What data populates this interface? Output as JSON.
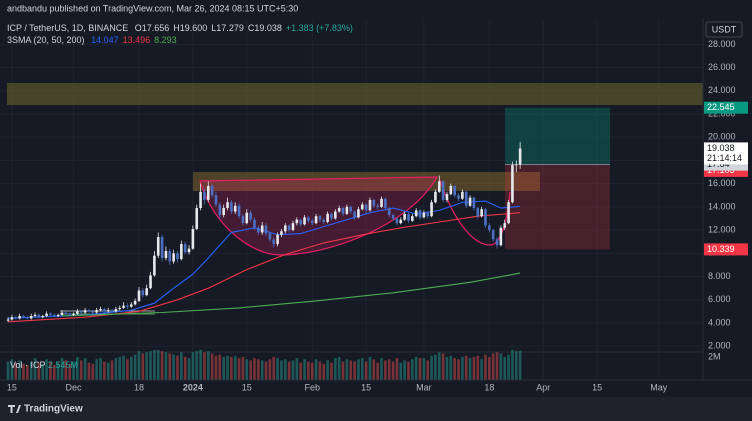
{
  "header": {
    "publisher": "andbandu published on TradingView.com, Mar 26, 2024 08:15 UTC+5:30"
  },
  "footer": {
    "brand": "TradingView"
  },
  "chart_data": {
    "type": "candlestick",
    "symbol": "ICP / TetherUS, 1D, BINANCE",
    "ohlc_labels": [
      "O17.656",
      "H19.600",
      "L17.279",
      "C19.038",
      "+1.383 (+7.83%)"
    ],
    "currency": "USDT",
    "up_color": "#e6e8ee",
    "down_color": "#4c6fc4",
    "xlim": [
      -2.1,
      180.5
    ],
    "xticks": [
      {
        "value": 1,
        "label": "15"
      },
      {
        "value": 17,
        "label": "Dec"
      },
      {
        "value": 34,
        "label": "18"
      },
      {
        "value": 48,
        "label": "2024"
      },
      {
        "value": 62,
        "label": "15"
      },
      {
        "value": 79,
        "label": "Feb"
      },
      {
        "value": 93,
        "label": "15"
      },
      {
        "value": 108,
        "label": "Mar"
      },
      {
        "value": 125,
        "label": "18"
      },
      {
        "value": 139,
        "label": "Apr"
      },
      {
        "value": 153,
        "label": "15"
      },
      {
        "value": 169,
        "label": "May"
      }
    ],
    "ylim": [
      1.5,
      30.1
    ],
    "yticks": [
      {
        "value": 2,
        "label": "2.000"
      },
      {
        "value": 4,
        "label": "4.000"
      },
      {
        "value": 6,
        "label": "6.000"
      },
      {
        "value": 8,
        "label": "8.000"
      },
      {
        "value": 10,
        "label": "10.000"
      },
      {
        "value": 12,
        "label": "12.000"
      },
      {
        "value": 14,
        "label": "14.000"
      },
      {
        "value": 16,
        "label": "16.000"
      },
      {
        "value": 18,
        "label": "18.000"
      },
      {
        "value": 20,
        "label": "20.000"
      },
      {
        "value": 22,
        "label": "22.000"
      },
      {
        "value": 24,
        "label": "24.000"
      },
      {
        "value": 26,
        "label": "26.000"
      },
      {
        "value": 28,
        "label": "28.000"
      }
    ],
    "grid": true,
    "candles": [
      [
        4.2,
        4.5,
        4.1,
        4.3
      ],
      [
        4.3,
        4.7,
        4.2,
        4.5
      ],
      [
        4.5,
        4.6,
        4.3,
        4.4
      ],
      [
        4.4,
        4.8,
        4.3,
        4.6
      ],
      [
        4.6,
        4.7,
        4.4,
        4.5
      ],
      [
        4.5,
        4.6,
        4.3,
        4.4
      ],
      [
        4.4,
        4.8,
        4.3,
        4.6
      ],
      [
        4.6,
        4.9,
        4.5,
        4.7
      ],
      [
        4.7,
        4.8,
        4.4,
        4.5
      ],
      [
        4.5,
        4.7,
        4.4,
        4.6
      ],
      [
        4.6,
        5.0,
        4.5,
        4.8
      ],
      [
        4.8,
        4.9,
        4.6,
        4.7
      ],
      [
        4.7,
        4.8,
        4.5,
        4.6
      ],
      [
        4.6,
        4.8,
        4.5,
        4.7
      ],
      [
        4.7,
        5.1,
        4.6,
        4.9
      ],
      [
        4.9,
        5.0,
        4.7,
        4.8
      ],
      [
        4.8,
        4.9,
        4.6,
        4.7
      ],
      [
        4.7,
        4.9,
        4.6,
        4.8
      ],
      [
        4.8,
        5.2,
        4.7,
        5.0
      ],
      [
        5.0,
        5.1,
        4.8,
        4.9
      ],
      [
        4.9,
        5.3,
        4.8,
        5.1
      ],
      [
        5.1,
        5.2,
        4.9,
        5.0
      ],
      [
        5.0,
        5.1,
        4.8,
        4.9
      ],
      [
        4.9,
        5.3,
        4.8,
        5.1
      ],
      [
        5.1,
        5.4,
        5.0,
        5.2
      ],
      [
        5.2,
        5.3,
        4.9,
        5.0
      ],
      [
        5.0,
        5.3,
        4.9,
        5.1
      ],
      [
        5.1,
        5.2,
        4.9,
        5.0
      ],
      [
        5.0,
        5.4,
        4.9,
        5.2
      ],
      [
        5.2,
        5.5,
        5.1,
        5.3
      ],
      [
        5.3,
        5.8,
        5.2,
        5.5
      ],
      [
        5.5,
        5.7,
        5.2,
        5.4
      ],
      [
        5.4,
        5.8,
        5.3,
        5.6
      ],
      [
        5.6,
        6.1,
        5.5,
        5.9
      ],
      [
        5.9,
        7.1,
        5.8,
        6.8
      ],
      [
        6.8,
        7.0,
        6.2,
        6.4
      ],
      [
        6.4,
        7.3,
        6.3,
        7.0
      ],
      [
        7.0,
        8.4,
        6.9,
        8.1
      ],
      [
        8.1,
        10.2,
        8.0,
        9.8
      ],
      [
        9.8,
        11.8,
        9.6,
        11.4
      ],
      [
        11.4,
        11.6,
        9.3,
        9.6
      ],
      [
        9.6,
        10.6,
        9.4,
        10.2
      ],
      [
        10.2,
        10.4,
        9.0,
        9.3
      ],
      [
        9.3,
        10.3,
        9.1,
        10.0
      ],
      [
        10.0,
        10.2,
        9.2,
        9.5
      ],
      [
        9.5,
        11.1,
        9.4,
        10.8
      ],
      [
        10.8,
        11.0,
        9.9,
        10.1
      ],
      [
        10.1,
        10.7,
        9.9,
        10.4
      ],
      [
        10.4,
        12.4,
        10.3,
        12.1
      ],
      [
        12.1,
        14.2,
        12.0,
        13.9
      ],
      [
        13.9,
        16.0,
        13.7,
        15.3
      ],
      [
        15.3,
        15.6,
        14.2,
        14.6
      ],
      [
        14.6,
        16.2,
        14.4,
        15.8
      ],
      [
        15.8,
        16.0,
        14.8,
        15.0
      ],
      [
        15.0,
        15.3,
        14.0,
        14.2
      ],
      [
        14.2,
        14.4,
        13.0,
        13.3
      ],
      [
        13.3,
        14.2,
        13.1,
        13.9
      ],
      [
        13.9,
        14.8,
        13.7,
        14.4
      ],
      [
        14.4,
        14.6,
        13.4,
        13.6
      ],
      [
        13.6,
        14.4,
        13.4,
        14.1
      ],
      [
        14.1,
        14.3,
        13.0,
        13.2
      ],
      [
        13.2,
        13.4,
        12.4,
        12.6
      ],
      [
        12.6,
        13.8,
        12.5,
        13.5
      ],
      [
        13.5,
        13.7,
        12.7,
        12.9
      ],
      [
        12.9,
        13.1,
        12.0,
        12.2
      ],
      [
        12.2,
        12.4,
        11.6,
        11.8
      ],
      [
        11.8,
        12.7,
        11.6,
        12.4
      ],
      [
        12.4,
        12.6,
        11.5,
        11.7
      ],
      [
        11.7,
        11.9,
        11.0,
        11.2
      ],
      [
        11.2,
        11.4,
        10.5,
        10.8
      ],
      [
        10.8,
        11.8,
        10.6,
        11.6
      ],
      [
        11.6,
        12.1,
        11.4,
        11.9
      ],
      [
        11.9,
        12.6,
        11.7,
        12.4
      ],
      [
        12.4,
        12.5,
        11.8,
        12.0
      ],
      [
        12.0,
        12.8,
        11.9,
        12.6
      ],
      [
        12.6,
        13.1,
        12.4,
        12.9
      ],
      [
        12.9,
        13.0,
        12.3,
        12.5
      ],
      [
        12.5,
        13.3,
        12.4,
        13.1
      ],
      [
        13.1,
        13.2,
        12.6,
        12.8
      ],
      [
        12.8,
        13.0,
        12.4,
        12.6
      ],
      [
        12.6,
        13.4,
        12.5,
        13.2
      ],
      [
        13.2,
        13.3,
        12.7,
        12.9
      ],
      [
        12.9,
        13.0,
        12.5,
        12.7
      ],
      [
        12.7,
        13.6,
        12.6,
        13.4
      ],
      [
        13.4,
        13.5,
        12.8,
        13.0
      ],
      [
        13.0,
        13.8,
        12.9,
        13.6
      ],
      [
        13.6,
        14.1,
        13.5,
        13.9
      ],
      [
        13.9,
        14.0,
        13.2,
        13.4
      ],
      [
        13.4,
        14.2,
        13.3,
        14.0
      ],
      [
        14.0,
        14.1,
        13.4,
        13.6
      ],
      [
        13.6,
        13.7,
        12.9,
        13.1
      ],
      [
        13.1,
        14.0,
        13.0,
        13.8
      ],
      [
        13.8,
        14.4,
        13.7,
        14.2
      ],
      [
        14.2,
        14.3,
        13.5,
        13.7
      ],
      [
        13.7,
        14.8,
        13.6,
        14.6
      ],
      [
        14.6,
        14.7,
        13.9,
        14.1
      ],
      [
        14.1,
        14.3,
        13.8,
        14.0
      ],
      [
        14.0,
        14.9,
        13.9,
        14.7
      ],
      [
        14.7,
        14.8,
        13.7,
        13.9
      ],
      [
        13.9,
        14.0,
        13.1,
        13.3
      ],
      [
        13.3,
        13.4,
        12.8,
        13.0
      ],
      [
        13.0,
        13.1,
        12.4,
        12.6
      ],
      [
        12.6,
        13.1,
        12.5,
        12.9
      ],
      [
        12.9,
        13.6,
        12.8,
        13.4
      ],
      [
        13.4,
        13.5,
        12.6,
        12.8
      ],
      [
        12.8,
        13.4,
        12.7,
        13.2
      ],
      [
        13.2,
        13.9,
        13.1,
        13.7
      ],
      [
        13.7,
        13.8,
        12.9,
        13.1
      ],
      [
        13.1,
        13.7,
        13.0,
        13.5
      ],
      [
        13.5,
        13.6,
        13.0,
        13.2
      ],
      [
        13.2,
        14.6,
        13.1,
        14.4
      ],
      [
        14.4,
        15.5,
        14.3,
        15.3
      ],
      [
        15.3,
        16.7,
        15.2,
        16.2
      ],
      [
        16.2,
        16.3,
        14.4,
        14.6
      ],
      [
        14.6,
        15.3,
        14.4,
        15.1
      ],
      [
        15.1,
        16.0,
        15.0,
        15.8
      ],
      [
        15.8,
        15.9,
        14.8,
        15.0
      ],
      [
        15.0,
        15.2,
        14.5,
        14.7
      ],
      [
        14.7,
        15.5,
        14.6,
        15.3
      ],
      [
        15.3,
        15.4,
        13.9,
        14.1
      ],
      [
        14.1,
        15.0,
        14.0,
        14.8
      ],
      [
        14.8,
        14.9,
        13.7,
        13.9
      ],
      [
        13.9,
        14.0,
        13.0,
        13.2
      ],
      [
        13.2,
        14.0,
        13.1,
        13.8
      ],
      [
        13.8,
        13.9,
        12.2,
        12.4
      ],
      [
        12.4,
        12.6,
        11.8,
        12.0
      ],
      [
        12.0,
        12.1,
        11.0,
        11.2
      ],
      [
        11.2,
        11.4,
        10.4,
        10.7
      ],
      [
        10.7,
        12.4,
        10.6,
        12.2
      ],
      [
        12.2,
        12.9,
        12.0,
        12.6
      ],
      [
        12.6,
        14.6,
        12.5,
        14.4
      ],
      [
        14.4,
        17.9,
        14.3,
        17.6
      ],
      [
        17.6,
        18.0,
        17.0,
        17.656
      ],
      [
        17.656,
        19.6,
        17.279,
        19.038
      ]
    ],
    "indicator_title": "3SMA (20, 50, 200)",
    "sma": [
      {
        "name": "20",
        "color": "#2962ff",
        "last": 14.047,
        "x": [
          0,
          20,
          32,
          38,
          43,
          48,
          52,
          58,
          64,
          70,
          76,
          82,
          88,
          94,
          100,
          106,
          112,
          118,
          124,
          128,
          133
        ],
        "values": [
          4.4,
          4.7,
          5.1,
          5.7,
          7.0,
          8.2,
          9.6,
          11.8,
          12.2,
          11.6,
          11.7,
          12.3,
          12.9,
          13.5,
          13.9,
          13.4,
          13.7,
          14.4,
          14.5,
          13.9,
          14.047
        ]
      },
      {
        "name": "50",
        "color": "#f23645",
        "last": 13.496,
        "x": [
          0,
          20,
          34,
          44,
          52,
          62,
          72,
          82,
          92,
          102,
          112,
          122,
          133
        ],
        "values": [
          4.1,
          4.5,
          5.0,
          6.0,
          7.0,
          8.6,
          9.9,
          10.9,
          11.6,
          12.2,
          12.7,
          13.2,
          13.496
        ]
      },
      {
        "name": "200",
        "color": "#4caf50",
        "last": 8.293,
        "x": [
          14,
          40,
          60,
          80,
          100,
          120,
          133
        ],
        "values": [
          4.6,
          4.9,
          5.3,
          5.9,
          6.6,
          7.5,
          8.293
        ]
      }
    ],
    "volume_title": "Vol · ICP",
    "volume_last_label": "2.545M",
    "volume_lim": [
      0,
      2.6
    ],
    "volume_ticks": [
      {
        "value": 2,
        "label": "2M"
      }
    ],
    "volume": [
      1.6,
      1.8,
      1.5,
      1.7,
      1.4,
      1.3,
      1.6,
      1.9,
      1.5,
      1.4,
      1.8,
      1.6,
      1.3,
      1.5,
      1.9,
      1.7,
      1.4,
      1.6,
      2.0,
      1.7,
      1.9,
      1.5,
      1.4,
      1.8,
      1.9,
      1.6,
      1.5,
      1.7,
      1.9,
      2.0,
      2.1,
      1.8,
      2.0,
      2.2,
      2.5,
      2.3,
      2.4,
      2.5,
      2.6,
      2.6,
      2.5,
      2.4,
      2.3,
      2.2,
      2.1,
      2.4,
      2.0,
      1.9,
      2.4,
      2.5,
      2.6,
      2.4,
      2.5,
      2.3,
      2.1,
      2.2,
      2.0,
      2.1,
      2.0,
      2.1,
      1.9,
      2.0,
      1.8,
      1.7,
      1.9,
      1.8,
      1.7,
      1.6,
      1.8,
      2.0,
      1.9,
      1.7,
      1.8,
      1.6,
      1.7,
      1.9,
      1.5,
      1.8,
      1.6,
      1.5,
      1.8,
      1.6,
      1.4,
      1.7,
      1.5,
      1.9,
      2.0,
      1.6,
      1.8,
      1.7,
      1.6,
      1.8,
      1.9,
      1.6,
      2.0,
      1.8,
      1.5,
      1.9,
      1.7,
      1.8,
      1.6,
      1.9,
      1.5,
      1.7,
      1.6,
      1.8,
      2.0,
      1.9,
      1.9,
      1.7,
      2.1,
      2.2,
      2.4,
      2.3,
      2.0,
      2.1,
      1.9,
      1.8,
      2.0,
      2.1,
      1.9,
      2.0,
      2.1,
      1.8,
      2.2,
      2.0,
      2.3,
      2.4,
      2.3,
      2.0,
      2.2,
      2.6,
      2.5,
      2.545
    ],
    "position": {
      "target": 22.545,
      "entry": 17.64,
      "stop": 10.339
    },
    "alert": 17.103,
    "last_price": 19.038,
    "countdown": "21:14:14"
  }
}
